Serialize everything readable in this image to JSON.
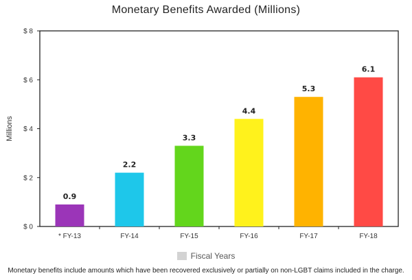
{
  "chart_data": {
    "type": "bar",
    "title": "Monetary Benefits Awarded (Millions)",
    "ylabel": "Millions",
    "xlabel": "Fiscal Years",
    "categories": [
      "FY-13",
      "FY-14",
      "FY-15",
      "FY-16",
      "FY-17",
      "FY-18"
    ],
    "category_prefix": [
      "*",
      "",
      "",
      "",
      "",
      ""
    ],
    "values": [
      0.9,
      2.2,
      3.3,
      4.4,
      5.3,
      6.1
    ],
    "data_labels": [
      "0.9",
      "2.2",
      "3.3",
      "4.4",
      "5.3",
      "6.1"
    ],
    "colors": [
      "#9b35b8",
      "#1ec7ea",
      "#63d61c",
      "#fff21c",
      "#ffb300",
      "#ff4a45"
    ],
    "ylim": [
      0,
      8
    ],
    "yticks": [
      0,
      2,
      4,
      6,
      8
    ],
    "ytick_labels": [
      "$ 0",
      "$ 2",
      "$ 4",
      "$ 6",
      "$ 8"
    ],
    "grid": false,
    "legend": {
      "label": "Fiscal Years",
      "swatch_color": "#d3d3d3",
      "placement": "bottom"
    }
  },
  "footnote": "Monetary benefits include amounts which have been recovered exclusively or partially on non-LGBT claims included in the charge."
}
